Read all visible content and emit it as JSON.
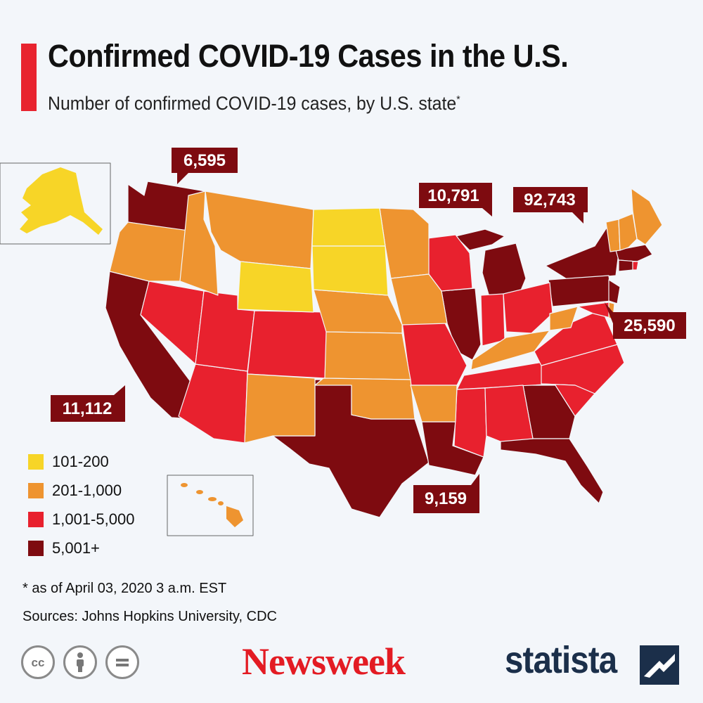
{
  "header": {
    "title": "Confirmed COVID-19 Cases in the U.S.",
    "subtitle": "Number of confirmed COVID-19 cases, by U.S. state",
    "subtitle_mark": "*"
  },
  "colors": {
    "accent": "#e8242f",
    "band_101_200": "#f7d527",
    "band_201_1000": "#ee9430",
    "band_1001_5000": "#e8212e",
    "band_5001_plus": "#7e0b10",
    "background": "#f3f6fa"
  },
  "legend": [
    {
      "label": "101-200",
      "color": "#f7d527"
    },
    {
      "label": "201-1,000",
      "color": "#ee9430"
    },
    {
      "label": "1,001-5,000",
      "color": "#e8212e"
    },
    {
      "label": "5,001+",
      "color": "#7e0b10"
    }
  ],
  "callouts": {
    "washington": "6,595",
    "michigan": "10,791",
    "new_york": "92,743",
    "new_jersey": "25,590",
    "california": "11,112",
    "louisiana": "9,159"
  },
  "footer": {
    "footnote": "* as of April 03, 2020 3 a.m. EST",
    "sources": "Sources: Johns Hopkins University, CDC",
    "license_icons": [
      "cc-icon",
      "attribution-icon",
      "no-derivatives-icon"
    ],
    "brand_left": "Newsweek",
    "brand_right": "statista"
  }
}
